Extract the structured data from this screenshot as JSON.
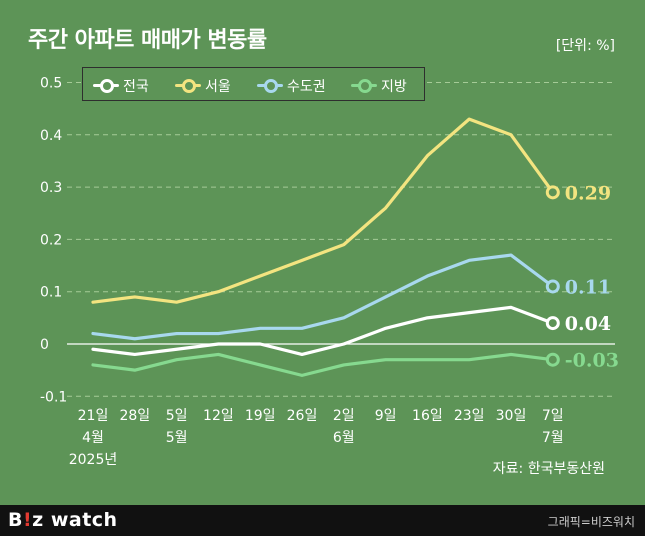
{
  "title": "주간 아파트 매매가 변동률",
  "unit": "[단위: %]",
  "source": "자료: 한국부동산원",
  "footer": {
    "logo_main": "B",
    "logo_accent": "!",
    "logo_rest": "z watch",
    "credit": "그래픽=비즈워치"
  },
  "colors": {
    "background": "#5d9457",
    "national": "#ffffff",
    "seoul": "#f3e480",
    "capital": "#a8d8ee",
    "regional": "#86d98f",
    "grid": "#b8d9a8"
  },
  "chart_data": {
    "type": "line",
    "title": "주간 아파트 매매가 변동률",
    "ylabel": "[단위: %]",
    "ylim": [
      -0.1,
      0.5
    ],
    "yticks": [
      "0.5",
      "0.4",
      "0.3",
      "0.2",
      "0.1",
      "0",
      "-0.1"
    ],
    "ytick_values": [
      0.5,
      0.4,
      0.3,
      0.2,
      0.1,
      0,
      -0.1
    ],
    "categories": [
      "21일",
      "28일",
      "5일",
      "12일",
      "19일",
      "26일",
      "2일",
      "9일",
      "16일",
      "23일",
      "30일",
      "7일"
    ],
    "category_months": [
      "4월",
      "",
      "5월",
      "",
      "",
      "",
      "6월",
      "",
      "",
      "",
      "",
      "7월"
    ],
    "year_label": "2025년",
    "grid": true,
    "legend_position": "top-left",
    "series": [
      {
        "name": "전국",
        "color_key": "national",
        "values": [
          -0.01,
          -0.02,
          -0.01,
          0.0,
          0.0,
          -0.02,
          0.0,
          0.03,
          0.05,
          0.06,
          0.07,
          0.04
        ],
        "end_label": "0.04"
      },
      {
        "name": "서울",
        "color_key": "seoul",
        "values": [
          0.08,
          0.09,
          0.08,
          0.1,
          0.13,
          0.16,
          0.19,
          0.26,
          0.36,
          0.43,
          0.4,
          0.29
        ],
        "end_label": "0.29"
      },
      {
        "name": "수도권",
        "color_key": "capital",
        "values": [
          0.02,
          0.01,
          0.02,
          0.02,
          0.03,
          0.03,
          0.05,
          0.09,
          0.13,
          0.16,
          0.17,
          0.11
        ],
        "end_label": "0.11"
      },
      {
        "name": "지방",
        "color_key": "regional",
        "values": [
          -0.04,
          -0.05,
          -0.03,
          -0.02,
          -0.04,
          -0.06,
          -0.04,
          -0.03,
          -0.03,
          -0.03,
          -0.02,
          -0.03
        ],
        "end_label": "-0.03"
      }
    ]
  }
}
